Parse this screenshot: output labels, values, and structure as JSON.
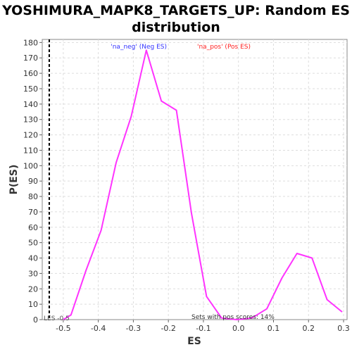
{
  "chart_data": {
    "type": "line",
    "title_line1": "YOSHIMURA_MAPK8_TARGETS_UP: Random ES",
    "title_line2": "distribution",
    "xlabel": "ES",
    "ylabel": "P(ES)",
    "xlim": [
      -0.56,
      0.31
    ],
    "ylim": [
      0,
      182
    ],
    "xticks": [
      -0.5,
      -0.4,
      -0.3,
      -0.2,
      -0.1,
      0.0,
      0.1,
      0.2,
      0.3
    ],
    "xtick_labels": [
      "-0.5",
      "-0.4",
      "-0.3",
      "-0.2",
      "-0.1",
      "0.0",
      "0.1",
      "0.2",
      "0.3"
    ],
    "yticks": [
      0,
      10,
      20,
      30,
      40,
      50,
      60,
      70,
      80,
      90,
      100,
      110,
      120,
      130,
      140,
      150,
      160,
      170,
      180
    ],
    "ytick_labels": [
      "0",
      "10",
      "20",
      "30",
      "40",
      "50",
      "60",
      "70",
      "80",
      "90",
      "100",
      "110",
      "120",
      "130",
      "140",
      "150",
      "160",
      "170",
      "180"
    ],
    "grid": true,
    "legend": {
      "neg_label": "'na_neg' (Neg ES)",
      "pos_label": "'na_pos' (Pos ES)",
      "neg_color": "#3333ff",
      "pos_color": "#ff2222"
    },
    "series": [
      {
        "color": "#ff33ff",
        "x": [
          -0.5,
          -0.478,
          -0.435,
          -0.392,
          -0.349,
          -0.306,
          -0.263,
          -0.22,
          -0.177,
          -0.134,
          -0.091,
          -0.048,
          -0.005,
          0.038,
          0.081,
          0.124,
          0.167,
          0.21,
          0.253,
          0.296
        ],
        "y": [
          0,
          3,
          32,
          58,
          102,
          132,
          175,
          142,
          136,
          69,
          15,
          1,
          0,
          1,
          7,
          27,
          43,
          40,
          13,
          5
        ]
      }
    ],
    "vline": {
      "x": -0.54,
      "label": "LES -0.5"
    },
    "annotation": "Sets with pos scores: 14%"
  }
}
